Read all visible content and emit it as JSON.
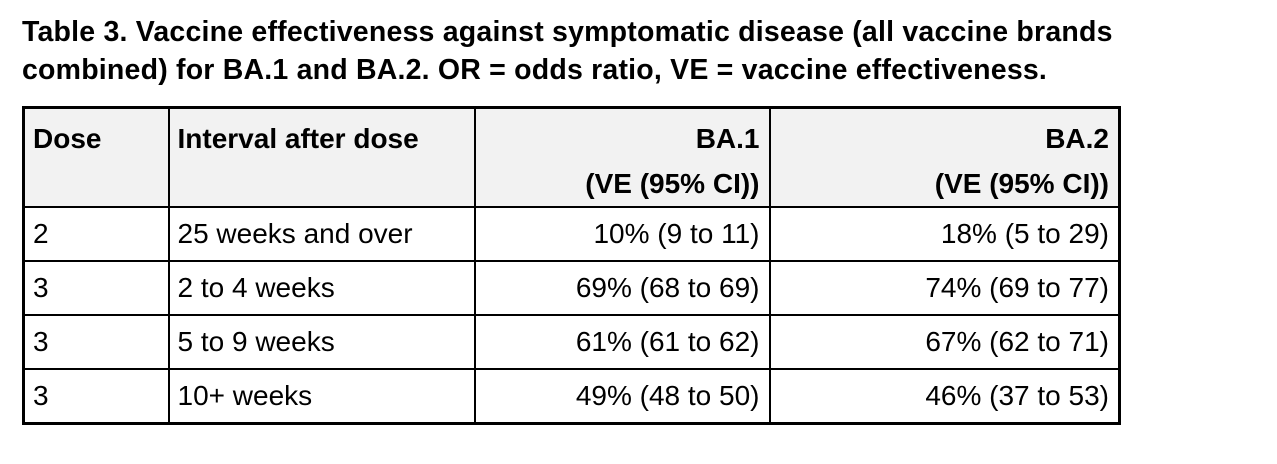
{
  "title": {
    "lines": [
      "Table 3. Vaccine effectiveness against symptomatic disease (all vaccine brands",
      "combined) for BA.1 and BA.2. OR = odds ratio, VE = vaccine effectiveness."
    ]
  },
  "table": {
    "columns": [
      {
        "label": "Dose",
        "sublabel": "",
        "align": "left"
      },
      {
        "label": "Interval after dose",
        "sublabel": "",
        "align": "left"
      },
      {
        "label": "BA.1",
        "sublabel": "(VE (95% CI))",
        "align": "right"
      },
      {
        "label": "BA.2",
        "sublabel": "(VE (95% CI))",
        "align": "right"
      }
    ],
    "rows": [
      [
        "2",
        "25 weeks and over",
        "10% (9 to 11)",
        "18% (5 to 29)"
      ],
      [
        "3",
        "2 to 4 weeks",
        "69% (68 to 69)",
        "74% (69 to 77)"
      ],
      [
        "3",
        "5 to 9 weeks",
        "61% (61 to 62)",
        "67% (62 to 71)"
      ],
      [
        "3",
        "10+ weeks",
        "49% (48 to 50)",
        "46% (37 to 53)"
      ]
    ]
  },
  "colors": {
    "background": "#ffffff",
    "text": "#000000",
    "border": "#000000",
    "header_bg": "#f2f2f2"
  }
}
